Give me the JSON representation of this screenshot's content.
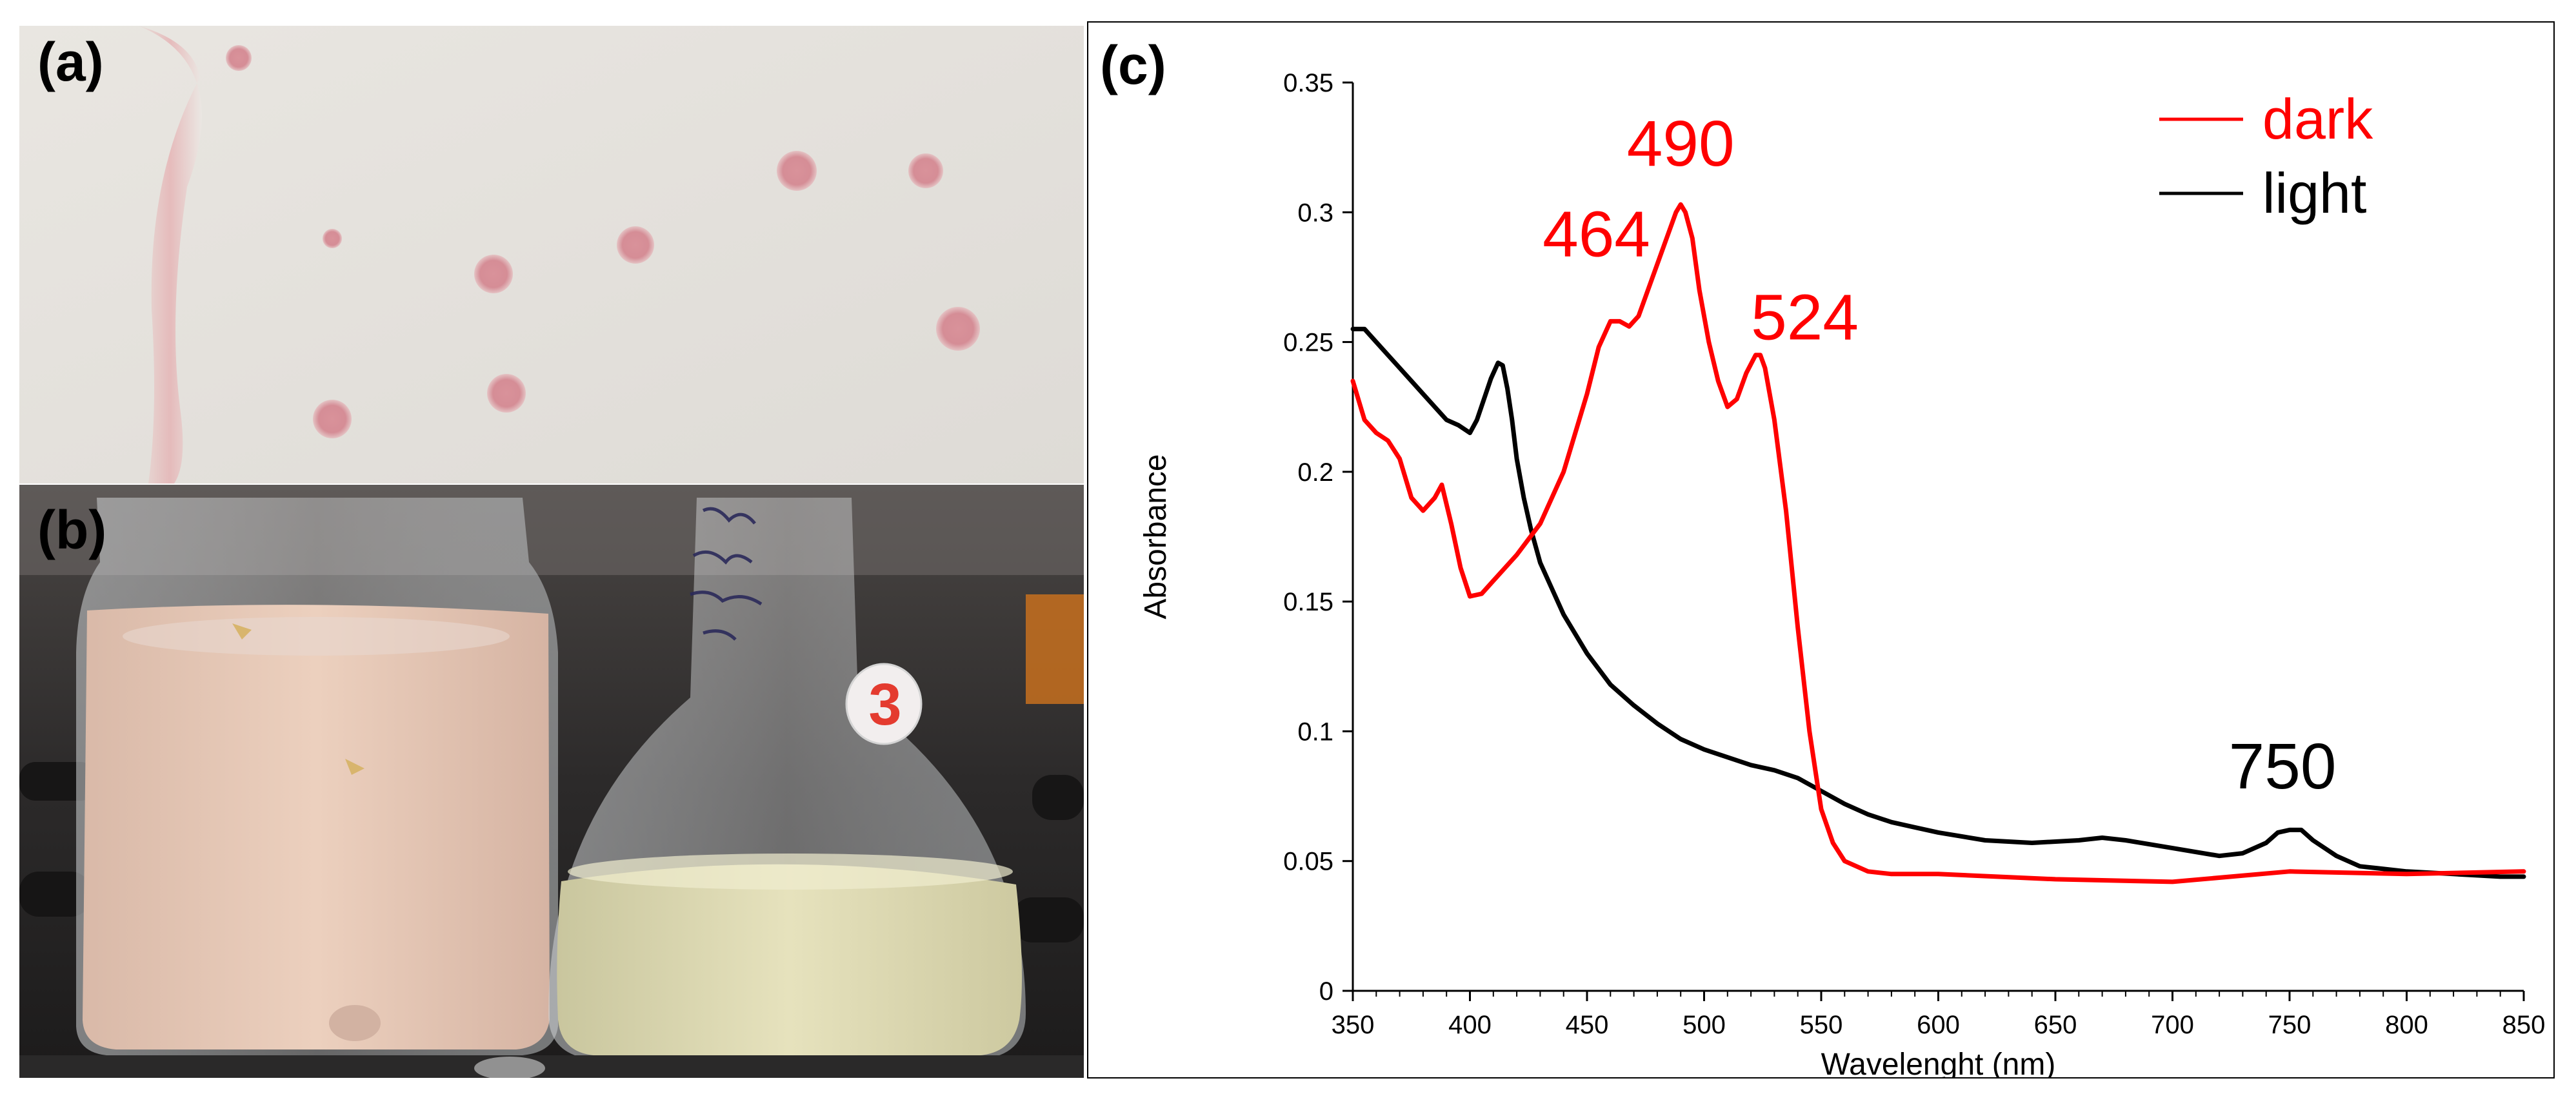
{
  "panels": {
    "a": {
      "label": "(a)"
    },
    "b": {
      "label": "(b)",
      "flask_marking": "3"
    },
    "c": {
      "label": "(c)"
    }
  },
  "colors": {
    "dark": "#ff0000",
    "light": "#000000"
  },
  "chart_data": {
    "type": "line",
    "title": "",
    "xlabel": "Wavelenght (nm)",
    "ylabel": "Absorbance",
    "xlim": [
      350,
      850
    ],
    "ylim": [
      0,
      0.35
    ],
    "x_ticks": [
      350,
      400,
      450,
      500,
      550,
      600,
      650,
      700,
      750,
      800,
      850
    ],
    "y_ticks": [
      0,
      0.05,
      0.1,
      0.15,
      0.2,
      0.25,
      0.3,
      0.35
    ],
    "y_tick_labels": [
      "0",
      "0.05",
      "0.1",
      "0.15",
      "0.2",
      "0.25",
      "0.3",
      "0.35"
    ],
    "grid": false,
    "legend": {
      "position": "top-right",
      "entries": [
        "dark",
        "light"
      ]
    },
    "series": [
      {
        "name": "dark",
        "color": "#ff0000",
        "x": [
          350,
          355,
          360,
          365,
          370,
          375,
          380,
          385,
          388,
          392,
          396,
          400,
          405,
          410,
          420,
          430,
          440,
          450,
          455,
          460,
          464,
          468,
          472,
          476,
          480,
          484,
          488,
          490,
          492,
          495,
          498,
          502,
          506,
          510,
          514,
          518,
          522,
          524,
          526,
          530,
          535,
          540,
          545,
          550,
          555,
          560,
          570,
          580,
          600,
          650,
          700,
          750,
          800,
          850
        ],
        "y": [
          0.235,
          0.22,
          0.215,
          0.212,
          0.205,
          0.19,
          0.185,
          0.19,
          0.195,
          0.18,
          0.163,
          0.152,
          0.153,
          0.158,
          0.168,
          0.18,
          0.2,
          0.23,
          0.248,
          0.258,
          0.258,
          0.256,
          0.26,
          0.27,
          0.28,
          0.29,
          0.3,
          0.303,
          0.3,
          0.29,
          0.27,
          0.25,
          0.235,
          0.225,
          0.228,
          0.238,
          0.245,
          0.245,
          0.24,
          0.22,
          0.185,
          0.14,
          0.1,
          0.07,
          0.057,
          0.05,
          0.046,
          0.045,
          0.045,
          0.043,
          0.042,
          0.046,
          0.045,
          0.046
        ]
      },
      {
        "name": "light",
        "color": "#000000",
        "x": [
          350,
          355,
          360,
          365,
          370,
          375,
          380,
          385,
          390,
          395,
          400,
          403,
          406,
          409,
          412,
          414,
          416,
          418,
          420,
          423,
          426,
          430,
          435,
          440,
          450,
          460,
          470,
          480,
          490,
          500,
          510,
          520,
          530,
          540,
          550,
          560,
          570,
          580,
          590,
          600,
          620,
          640,
          660,
          670,
          680,
          700,
          720,
          730,
          740,
          745,
          750,
          755,
          760,
          770,
          780,
          800,
          820,
          840,
          850
        ],
        "y": [
          0.255,
          0.255,
          0.25,
          0.245,
          0.24,
          0.235,
          0.23,
          0.225,
          0.22,
          0.218,
          0.215,
          0.22,
          0.228,
          0.236,
          0.242,
          0.241,
          0.232,
          0.22,
          0.205,
          0.19,
          0.178,
          0.165,
          0.155,
          0.145,
          0.13,
          0.118,
          0.11,
          0.103,
          0.097,
          0.093,
          0.09,
          0.087,
          0.085,
          0.082,
          0.077,
          0.072,
          0.068,
          0.065,
          0.063,
          0.061,
          0.058,
          0.057,
          0.058,
          0.059,
          0.058,
          0.055,
          0.052,
          0.053,
          0.057,
          0.061,
          0.062,
          0.062,
          0.058,
          0.052,
          0.048,
          0.046,
          0.045,
          0.044,
          0.044
        ]
      }
    ],
    "annotations": [
      {
        "text": "490",
        "x": 490,
        "y": 0.318,
        "color": "#ff0000"
      },
      {
        "text": "464",
        "x": 454,
        "y": 0.283,
        "color": "#ff0000"
      },
      {
        "text": "524",
        "x": 543,
        "y": 0.251,
        "color": "#ff0000"
      },
      {
        "text": "750",
        "x": 747,
        "y": 0.078,
        "color": "#000000"
      }
    ]
  }
}
